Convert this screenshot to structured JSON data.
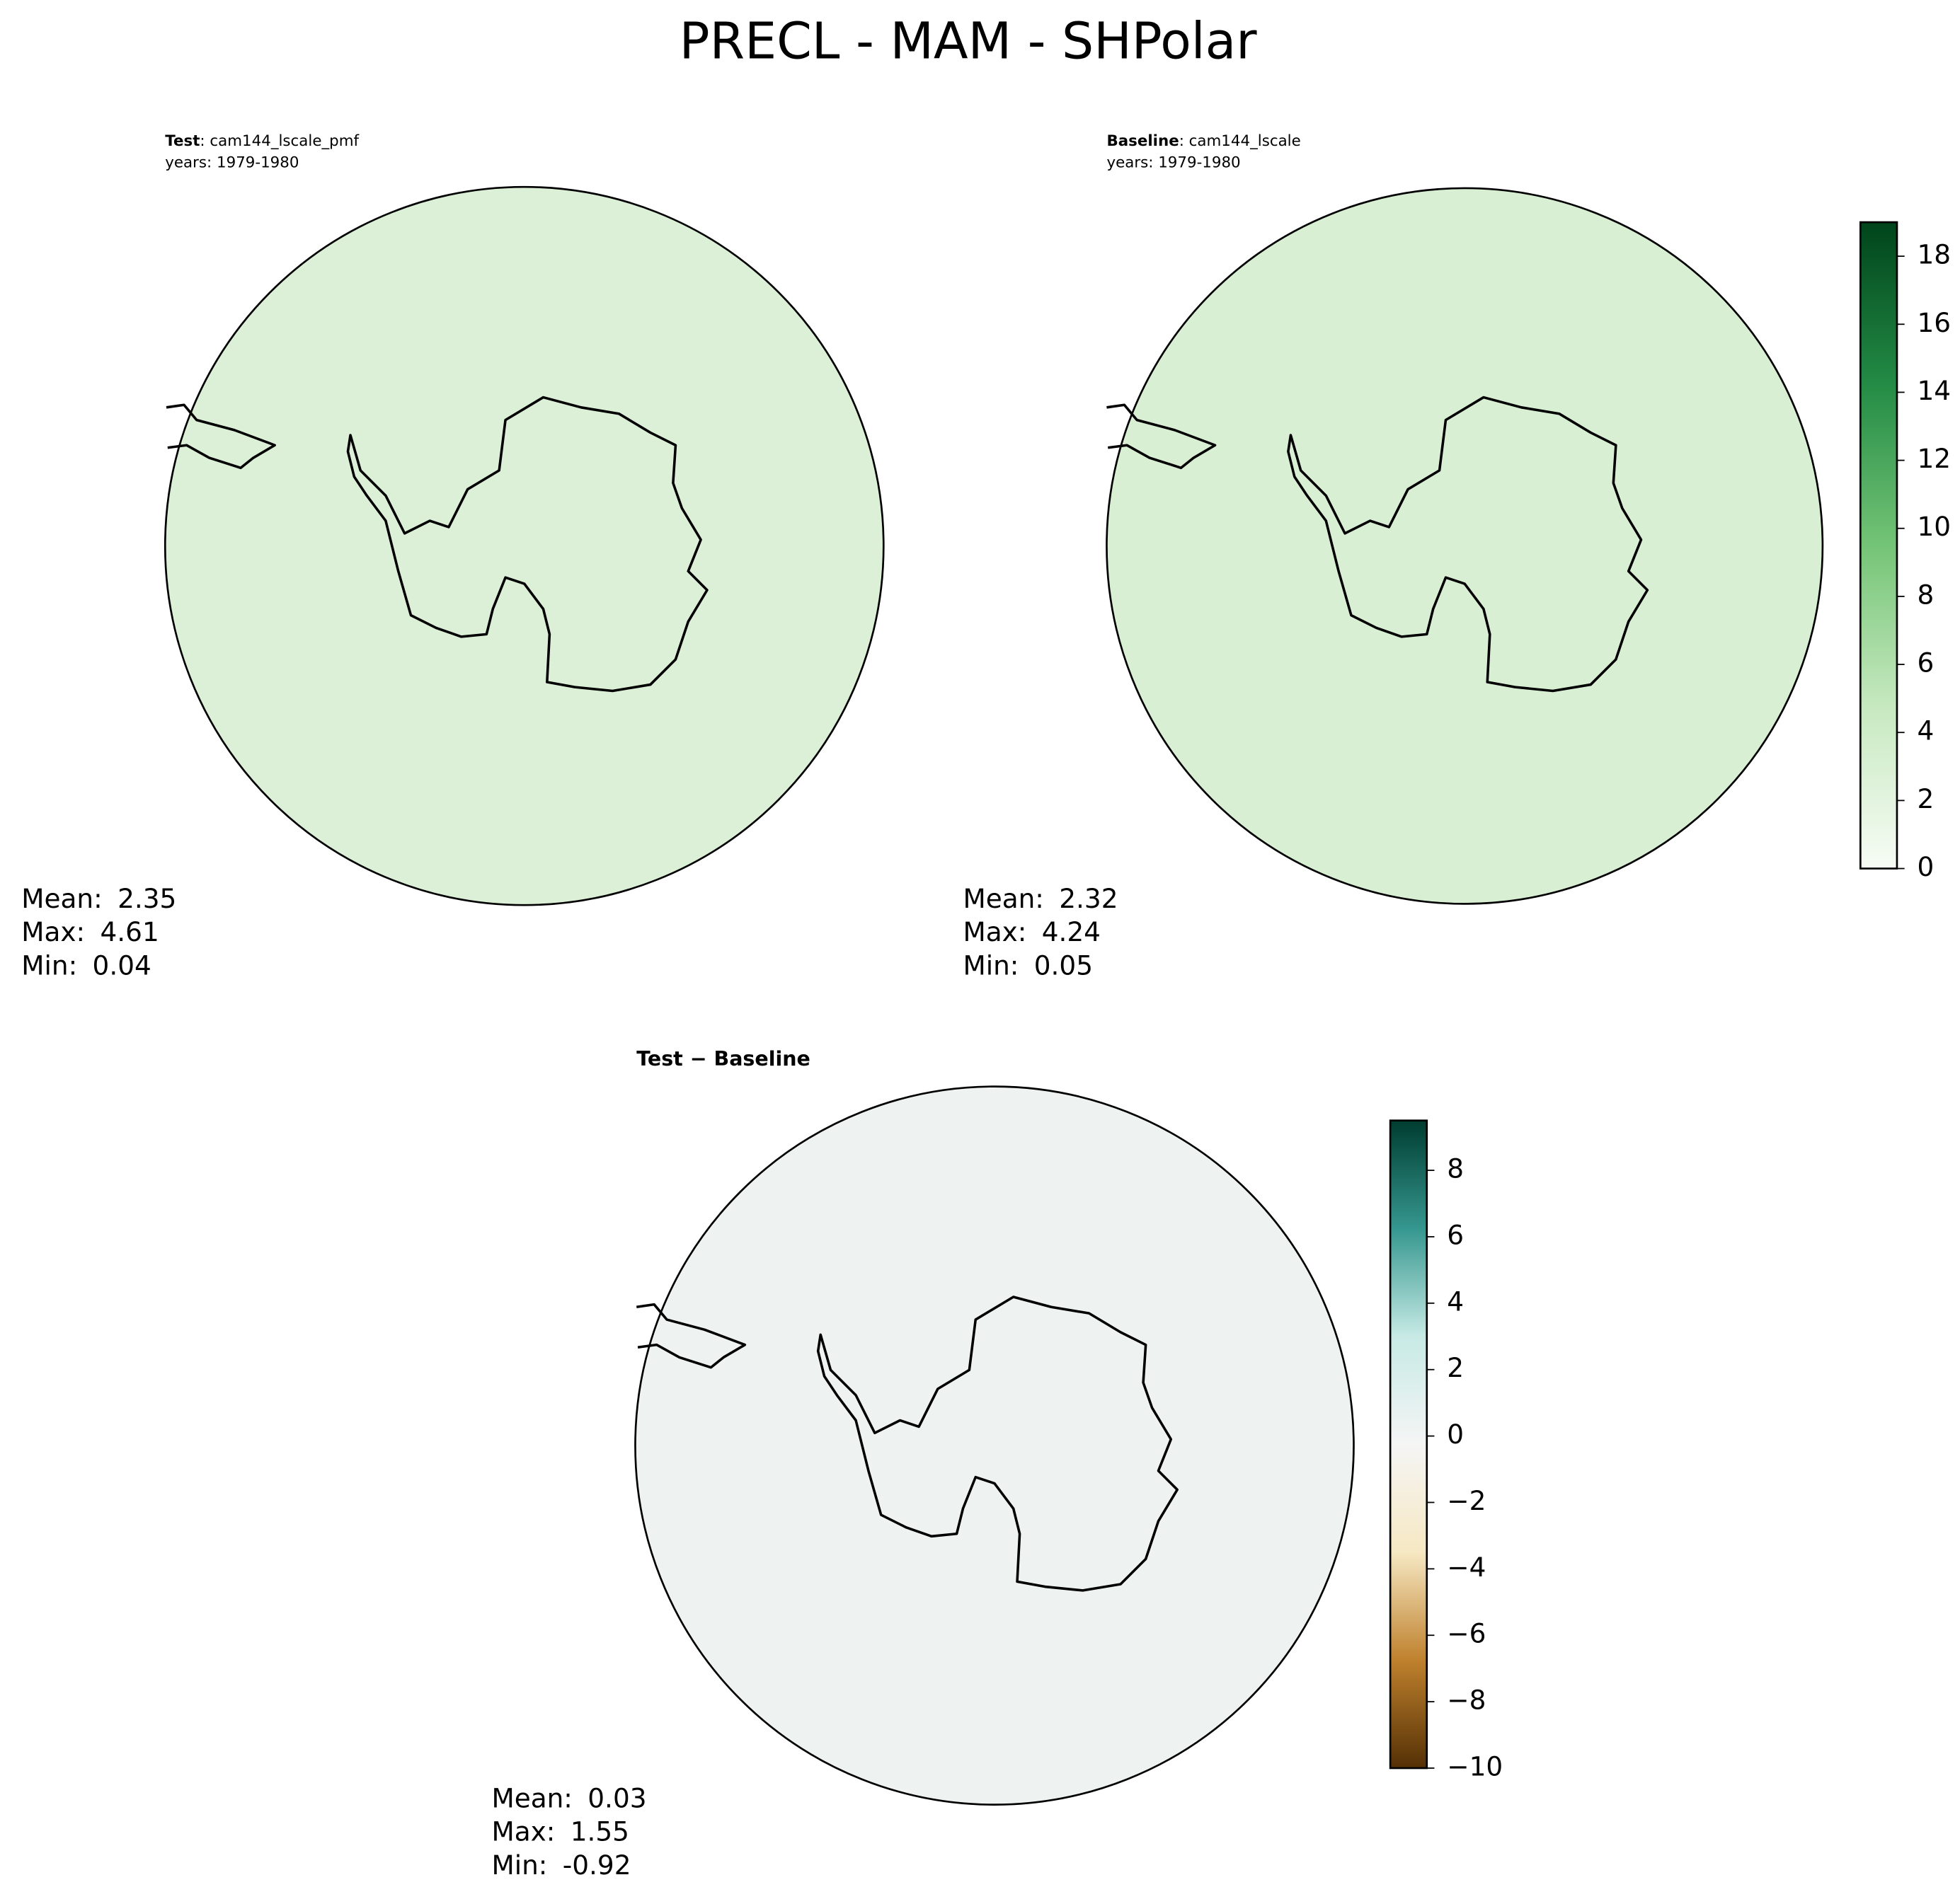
{
  "title": "PRECL - MAM - SHPolar",
  "chart_data": [
    {
      "type": "map",
      "title_bold": "Test",
      "title_rest": ": cam144_lscale_pmf",
      "subtitle": "years: 1979-1980",
      "stats": [
        {
          "label": "Mean:",
          "value": 2.35
        },
        {
          "label": "Max:",
          "value": 4.61
        },
        {
          "label": "Min:",
          "value": 0.04
        }
      ]
    },
    {
      "type": "map",
      "title_bold": "Baseline",
      "title_rest": ": cam144_lscale",
      "subtitle": "years: 1979-1980",
      "stats": [
        {
          "label": "Mean:",
          "value": 2.32
        },
        {
          "label": "Max:",
          "value": 4.24
        },
        {
          "label": "Min:",
          "value": 0.05
        }
      ],
      "colorbar": {
        "lim": [
          0,
          19
        ],
        "ticks": [
          0,
          2,
          4,
          6,
          8,
          10,
          12,
          14,
          16,
          18
        ],
        "colors": [
          "#f7fcf5",
          "#c7e9c0",
          "#74c476",
          "#238b45",
          "#00441b"
        ]
      }
    },
    {
      "type": "map",
      "title_bold": "Test − Baseline",
      "stats": [
        {
          "label": "Mean:",
          "value": 0.03
        },
        {
          "label": "Max:",
          "value": 1.55
        },
        {
          "label": "Min:",
          "value": -0.92
        }
      ],
      "colorbar": {
        "lim": [
          -10,
          9.5
        ],
        "ticks": [
          {
            "value": -10,
            "label": "−10"
          },
          {
            "value": -8,
            "label": "−8"
          },
          {
            "value": -6,
            "label": "−6"
          },
          {
            "value": -4,
            "label": "−4"
          },
          {
            "value": -2,
            "label": "−2"
          },
          0,
          2,
          4,
          6,
          8
        ],
        "colors": [
          "#543005",
          "#bf812d",
          "#f6e8c3",
          "#f5f5f5",
          "#c7eae5",
          "#35978f",
          "#003c30"
        ]
      }
    }
  ]
}
